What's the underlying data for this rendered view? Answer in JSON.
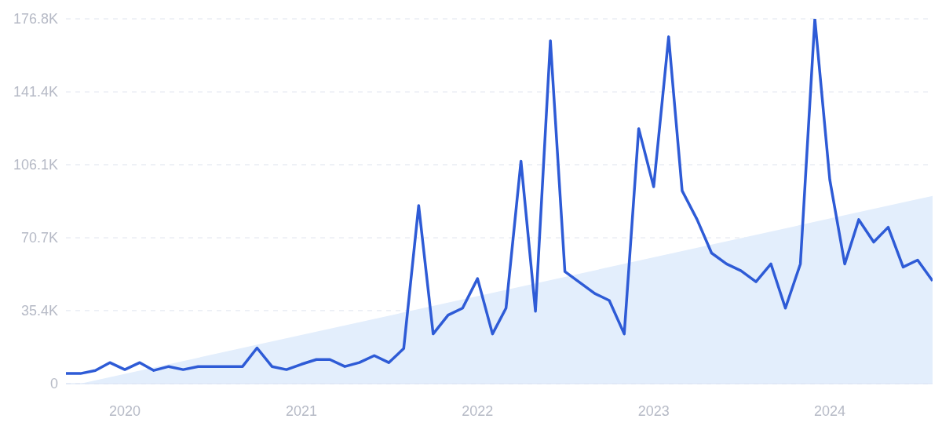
{
  "chart_data": {
    "type": "line",
    "x": [
      "2019-09",
      "2019-10",
      "2019-11",
      "2019-12",
      "2020-01",
      "2020-02",
      "2020-03",
      "2020-04",
      "2020-05",
      "2020-06",
      "2020-07",
      "2020-08",
      "2020-09",
      "2020-10",
      "2020-11",
      "2020-12",
      "2021-01",
      "2021-02",
      "2021-03",
      "2021-04",
      "2021-05",
      "2021-06",
      "2021-07",
      "2021-08",
      "2021-09",
      "2021-10",
      "2021-11",
      "2021-12",
      "2022-01",
      "2022-02",
      "2022-03",
      "2022-04",
      "2022-05",
      "2022-06",
      "2022-07",
      "2022-08",
      "2022-09",
      "2022-10",
      "2022-11",
      "2022-12",
      "2023-01",
      "2023-02",
      "2023-03",
      "2023-04",
      "2023-05",
      "2023-06",
      "2023-07",
      "2023-08",
      "2023-09",
      "2023-10",
      "2023-11",
      "2023-12",
      "2024-01",
      "2024-02",
      "2024-03",
      "2024-04",
      "2024-05",
      "2024-06",
      "2024-07",
      "2024-08"
    ],
    "series": [
      {
        "type": "area",
        "color": "#e3eefc",
        "x": [
          "2019-10",
          "2024-08"
        ],
        "values": [
          0,
          91000
        ]
      },
      {
        "color": "#2e5bd6",
        "values": [
          4900,
          4900,
          6400,
          10200,
          6800,
          10200,
          6400,
          8300,
          6800,
          8300,
          8300,
          8300,
          8300,
          17300,
          8300,
          6800,
          9400,
          11700,
          11700,
          8300,
          10200,
          13600,
          10200,
          17000,
          86300,
          24100,
          33200,
          36600,
          50900,
          24100,
          36600,
          107800,
          35100,
          166200,
          54300,
          49000,
          43700,
          40300,
          24100,
          123600,
          95400,
          168100,
          93500,
          79500,
          63300,
          58000,
          54700,
          49400,
          58000,
          36600,
          58000,
          176800,
          98800,
          58000,
          79500,
          68600,
          75800,
          56500,
          59900,
          49800
        ]
      }
    ],
    "xlim": [
      "2019-09",
      "2024-08"
    ],
    "xticks": [
      "2020",
      "2021",
      "2022",
      "2023",
      "2024"
    ],
    "ylim": [
      0,
      176800
    ],
    "yticks": [
      0,
      {
        "value": 35400,
        "label": "35.4K"
      },
      {
        "value": 70700,
        "label": "70.7K"
      },
      {
        "value": 106100,
        "label": "106.1K"
      },
      {
        "value": 141400,
        "label": "141.4K"
      },
      {
        "value": 176800,
        "label": "176.8K"
      }
    ],
    "grid": "y",
    "marker": "none",
    "line_style": "solid"
  }
}
